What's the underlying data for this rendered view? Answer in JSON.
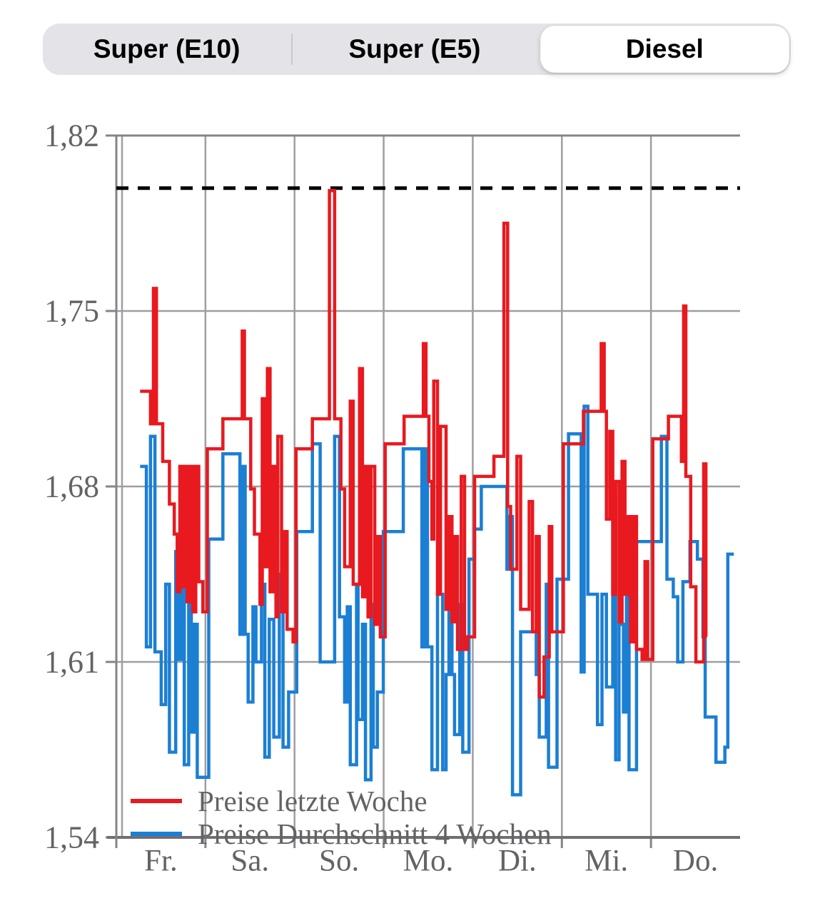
{
  "tabs": {
    "items": [
      {
        "label": "Super (E10)",
        "selected": false
      },
      {
        "label": "Super (E5)",
        "selected": false
      },
      {
        "label": "Diesel",
        "selected": true
      }
    ]
  },
  "colors": {
    "series_last_week": "#e8191f",
    "series_avg": "#1b7fd4",
    "reference_line": "#000000",
    "grid": "#9e9ea3",
    "frame": "#85858a",
    "axis_bottom": "#6f6f74",
    "axis_text": "#636366",
    "segment_bg": "#e3e3e8",
    "segment_selected_bg": "#ffffff"
  },
  "chart_data": {
    "type": "line",
    "subtype": "step",
    "title": "",
    "xlabel": "",
    "ylabel": "",
    "x_unit": "hours",
    "xlim": [
      0,
      168
    ],
    "ylim": [
      1.54,
      1.82
    ],
    "ytick_step": 0.07,
    "ytick_values": [
      1.54,
      1.61,
      1.68,
      1.75,
      1.82
    ],
    "ytick_labels": [
      "1,54",
      "1,61",
      "1,68",
      "1,75",
      "1,82"
    ],
    "categories": [
      "Fr.",
      "Sa.",
      "So.",
      "Mo.",
      "Di.",
      "Mi.",
      "Do."
    ],
    "day_span_hours": 24,
    "grid": true,
    "legend_position": "bottom-left",
    "reference_line": {
      "style": "dashed",
      "value": 1.799
    },
    "series": [
      {
        "name": "Preise letzte Woche",
        "color": "#e8191f",
        "points": [
          [
            6.4,
            1.718
          ],
          [
            9.2,
            1.705
          ],
          [
            10.0,
            1.759
          ],
          [
            10.8,
            1.705
          ],
          [
            12.5,
            1.69
          ],
          [
            14.3,
            1.673
          ],
          [
            15.6,
            1.661
          ],
          [
            16.4,
            1.638
          ],
          [
            17.1,
            1.688
          ],
          [
            17.9,
            1.64
          ],
          [
            18.5,
            1.688
          ],
          [
            19.1,
            1.634
          ],
          [
            19.8,
            1.688
          ],
          [
            20.6,
            1.63
          ],
          [
            21.4,
            1.688
          ],
          [
            22.2,
            1.642
          ],
          [
            23.3,
            1.63
          ],
          [
            24.5,
            1.695
          ],
          [
            28.7,
            1.707
          ],
          [
            33.9,
            1.742
          ],
          [
            34.5,
            1.707
          ],
          [
            36.2,
            1.679
          ],
          [
            37.2,
            1.661
          ],
          [
            38.7,
            1.633
          ],
          [
            39.3,
            1.715
          ],
          [
            39.9,
            1.648
          ],
          [
            40.7,
            1.727
          ],
          [
            41.4,
            1.638
          ],
          [
            42.2,
            1.688
          ],
          [
            43.0,
            1.628
          ],
          [
            43.5,
            1.7
          ],
          [
            44.5,
            1.63
          ],
          [
            45.3,
            1.662
          ],
          [
            46.0,
            1.623
          ],
          [
            47.6,
            1.618
          ],
          [
            48.4,
            1.695
          ],
          [
            52.8,
            1.707
          ],
          [
            57.4,
            1.798
          ],
          [
            58.8,
            1.707
          ],
          [
            60.5,
            1.679
          ],
          [
            61.5,
            1.648
          ],
          [
            63.0,
            1.714
          ],
          [
            63.8,
            1.641
          ],
          [
            65.5,
            1.727
          ],
          [
            66.3,
            1.636
          ],
          [
            67.1,
            1.688
          ],
          [
            67.8,
            1.628
          ],
          [
            68.6,
            1.688
          ],
          [
            69.6,
            1.625
          ],
          [
            70.3,
            1.66
          ],
          [
            71.1,
            1.62
          ],
          [
            72.4,
            1.697
          ],
          [
            77.5,
            1.708
          ],
          [
            82.7,
            1.737
          ],
          [
            83.4,
            1.708
          ],
          [
            84.2,
            1.682
          ],
          [
            85.0,
            1.659
          ],
          [
            85.5,
            1.722
          ],
          [
            86.5,
            1.637
          ],
          [
            87.3,
            1.704
          ],
          [
            88.8,
            1.631
          ],
          [
            89.6,
            1.668
          ],
          [
            90.4,
            1.626
          ],
          [
            91.1,
            1.66
          ],
          [
            91.9,
            1.615
          ],
          [
            92.9,
            1.684
          ],
          [
            93.8,
            1.615
          ],
          [
            94.6,
            1.62
          ],
          [
            96.5,
            1.684
          ],
          [
            101.7,
            1.692
          ],
          [
            104.4,
            1.785
          ],
          [
            105.4,
            1.672
          ],
          [
            106.2,
            1.647
          ],
          [
            107.9,
            1.692
          ],
          [
            108.9,
            1.631
          ],
          [
            111.2,
            1.674
          ],
          [
            112.1,
            1.622
          ],
          [
            113.1,
            1.66
          ],
          [
            113.9,
            1.596
          ],
          [
            115.2,
            1.612
          ],
          [
            116.6,
            1.664
          ],
          [
            117.3,
            1.622
          ],
          [
            120.4,
            1.697
          ],
          [
            125.8,
            1.71
          ],
          [
            130.6,
            1.737
          ],
          [
            131.4,
            1.71
          ],
          [
            132.0,
            1.667
          ],
          [
            132.9,
            1.702
          ],
          [
            133.7,
            1.637
          ],
          [
            134.5,
            1.682
          ],
          [
            135.4,
            1.626
          ],
          [
            136.2,
            1.69
          ],
          [
            137.0,
            1.637
          ],
          [
            137.8,
            1.668
          ],
          [
            138.5,
            1.618
          ],
          [
            139.3,
            1.668
          ],
          [
            140.1,
            1.615
          ],
          [
            141.6,
            1.611
          ],
          [
            142.4,
            1.65
          ],
          [
            143.1,
            1.611
          ],
          [
            144.5,
            1.699
          ],
          [
            148.7,
            1.708
          ],
          [
            152.2,
            1.69
          ],
          [
            152.8,
            1.752
          ],
          [
            153.4,
            1.684
          ],
          [
            154.7,
            1.64
          ],
          [
            156.1,
            1.61
          ],
          [
            158.2,
            1.689
          ],
          [
            158.8,
            1.62
          ],
          [
            159.0,
            1.62
          ]
        ]
      },
      {
        "name": "Preise Durchschnitt 4 Wochen",
        "color": "#1b7fd4",
        "points": [
          [
            6.4,
            1.688
          ],
          [
            8.1,
            1.616
          ],
          [
            9.2,
            1.7
          ],
          [
            10.4,
            1.614
          ],
          [
            12.1,
            1.593
          ],
          [
            13.3,
            1.641
          ],
          [
            14.3,
            1.574
          ],
          [
            16.0,
            1.654
          ],
          [
            16.8,
            1.611
          ],
          [
            17.5,
            1.647
          ],
          [
            18.3,
            1.569
          ],
          [
            19.5,
            1.633
          ],
          [
            20.2,
            1.582
          ],
          [
            21.0,
            1.625
          ],
          [
            21.8,
            1.564
          ],
          [
            24.9,
            1.659
          ],
          [
            28.7,
            1.693
          ],
          [
            33.3,
            1.621
          ],
          [
            33.9,
            1.688
          ],
          [
            34.7,
            1.621
          ],
          [
            35.5,
            1.594
          ],
          [
            36.8,
            1.632
          ],
          [
            37.6,
            1.61
          ],
          [
            39.1,
            1.641
          ],
          [
            40.0,
            1.572
          ],
          [
            41.2,
            1.627
          ],
          [
            42.4,
            1.58
          ],
          [
            43.9,
            1.645
          ],
          [
            44.9,
            1.576
          ],
          [
            46.4,
            1.598
          ],
          [
            48.6,
            1.662
          ],
          [
            52.8,
            1.697
          ],
          [
            54.9,
            1.61
          ],
          [
            58.8,
            1.7
          ],
          [
            60.1,
            1.628
          ],
          [
            61.5,
            1.594
          ],
          [
            62.2,
            1.632
          ],
          [
            63.0,
            1.569
          ],
          [
            64.7,
            1.641
          ],
          [
            65.1,
            1.587
          ],
          [
            66.3,
            1.625
          ],
          [
            67.1,
            1.563
          ],
          [
            68.6,
            1.633
          ],
          [
            69.2,
            1.576
          ],
          [
            70.3,
            1.598
          ],
          [
            71.9,
            1.662
          ],
          [
            77.3,
            1.695
          ],
          [
            82.3,
            1.616
          ],
          [
            83.0,
            1.695
          ],
          [
            83.8,
            1.616
          ],
          [
            85.0,
            1.567
          ],
          [
            86.5,
            1.637
          ],
          [
            87.9,
            1.567
          ],
          [
            88.8,
            1.605
          ],
          [
            89.6,
            1.649
          ],
          [
            90.4,
            1.605
          ],
          [
            91.1,
            1.581
          ],
          [
            92.5,
            1.633
          ],
          [
            93.3,
            1.574
          ],
          [
            95.0,
            1.651
          ],
          [
            96.5,
            1.663
          ],
          [
            98.3,
            1.68
          ],
          [
            105.2,
            1.647
          ],
          [
            105.8,
            1.668
          ],
          [
            106.7,
            1.557
          ],
          [
            108.9,
            1.622
          ],
          [
            113.1,
            1.605
          ],
          [
            113.9,
            1.58
          ],
          [
            115.8,
            1.641
          ],
          [
            116.4,
            1.568
          ],
          [
            118.7,
            1.643
          ],
          [
            121.8,
            1.701
          ],
          [
            125.2,
            1.606
          ],
          [
            126.0,
            1.712
          ],
          [
            127.0,
            1.637
          ],
          [
            129.6,
            1.585
          ],
          [
            130.8,
            1.637
          ],
          [
            132.0,
            1.6
          ],
          [
            133.7,
            1.676
          ],
          [
            134.5,
            1.571
          ],
          [
            135.4,
            1.625
          ],
          [
            136.6,
            1.59
          ],
          [
            137.4,
            1.66
          ],
          [
            138.1,
            1.567
          ],
          [
            140.1,
            1.658
          ],
          [
            146.8,
            1.7
          ],
          [
            148.3,
            1.643
          ],
          [
            150.0,
            1.636
          ],
          [
            151.2,
            1.61
          ],
          [
            152.6,
            1.642
          ],
          [
            154.5,
            1.658
          ],
          [
            156.5,
            1.651
          ],
          [
            158.0,
            1.62
          ],
          [
            158.6,
            1.588
          ],
          [
            161.5,
            1.57
          ],
          [
            163.9,
            1.576
          ],
          [
            164.7,
            1.653
          ],
          [
            166.3,
            1.653
          ]
        ]
      }
    ]
  },
  "legend": {
    "rows": [
      {
        "label": "Preise letzte Woche"
      },
      {
        "label": "Preise Durchschnitt 4 Wochen"
      }
    ]
  }
}
